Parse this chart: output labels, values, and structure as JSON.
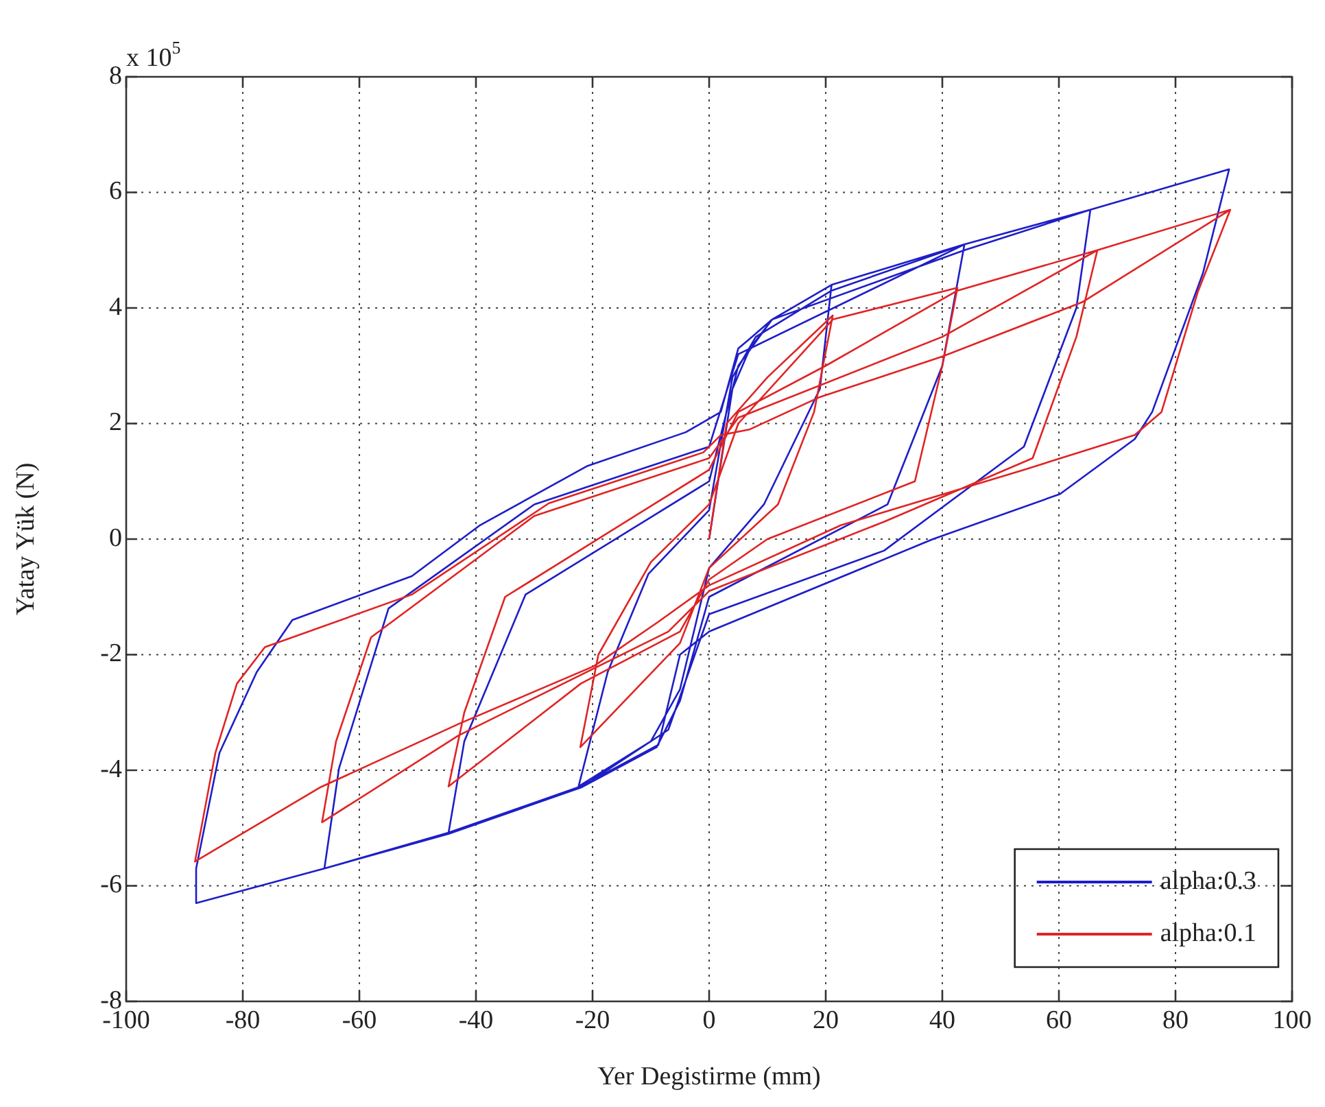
{
  "chart_data": {
    "type": "line",
    "xlabel": "Yer Degistirme (mm)",
    "ylabel": "Yatay Yük (N)",
    "annotations": [
      "x 10$^{5}$"
    ],
    "xlim": [
      -100,
      100
    ],
    "xticks": [
      -100,
      -80,
      -60,
      -40,
      -20,
      0,
      20,
      40,
      60,
      80,
      100
    ],
    "ylim": [
      -8,
      8
    ],
    "yticks": [
      -8,
      -6,
      -4,
      -2,
      0,
      2,
      4,
      6,
      8
    ],
    "grid": true,
    "legend": "bottom right",
    "line_style": "solid",
    "series": [
      {
        "name": "alpha:0.3",
        "color": "#1e1ec8",
        "x": [
          0,
          4,
          7,
          10.8,
          21,
          19,
          9.4,
          0,
          -5,
          -10,
          -22.4,
          -17.4,
          -10.4,
          0,
          4,
          8,
          21,
          43.8,
          40,
          30.6,
          0,
          -5,
          -9,
          -22,
          -44.7,
          -42,
          -31.5,
          0,
          5,
          10.8,
          43.8,
          65.4,
          63,
          54,
          30,
          0,
          -7,
          -22,
          -44.7,
          -66,
          -63.5,
          -55,
          -30,
          0,
          5,
          43.8,
          65.4,
          89.2,
          84.7,
          76,
          73,
          60.2,
          38.4,
          0,
          -5,
          -8.7,
          -22,
          -44.7,
          -66,
          -88,
          -88,
          -84,
          -77.6,
          -71.5,
          -51,
          -39.3,
          -21,
          -4,
          2,
          5,
          7,
          10.8,
          21,
          43.8,
          65.4,
          89.2
        ],
        "values": [
          0,
          2.6,
          3.3,
          3.8,
          4.4,
          2.6,
          0.6,
          -0.5,
          -2.6,
          -3.5,
          -4.28,
          -2.3,
          -0.6,
          0.5,
          2.8,
          3.5,
          4.3,
          5.1,
          3,
          0.6,
          -1,
          -2.8,
          -3.6,
          -4.3,
          -5.08,
          -3.5,
          -0.96,
          1,
          3,
          3.8,
          5,
          5.7,
          4,
          1.6,
          -0.2,
          -1.3,
          -3.3,
          -4.3,
          -5.1,
          -5.7,
          -3.97,
          -1.2,
          0.6,
          1.6,
          3.2,
          5.1,
          5.7,
          6.4,
          4.6,
          2.2,
          1.73,
          0.78,
          0,
          -1.6,
          -2,
          -3.56,
          -4.28,
          -5.08,
          -5.7,
          -6.3,
          -5.7,
          -3.7,
          -2.3,
          -1.4,
          -0.64,
          0.24,
          1.26,
          1.85,
          2.2,
          3.3,
          3.47,
          3.8,
          4.4,
          5.1,
          5.7,
          6.4
        ]
      },
      {
        "name": "alpha:0.1",
        "color": "#e02424",
        "x": [
          0,
          3,
          10,
          21.2,
          18,
          11.8,
          0,
          -5,
          -22.1,
          -19,
          -10,
          0,
          5,
          21.2,
          42.6,
          40,
          35.3,
          10,
          0,
          -5,
          -22,
          -44.7,
          -42,
          -35,
          0,
          5,
          20,
          42.6,
          66.6,
          63,
          55.5,
          30,
          0,
          -7,
          -43,
          -66.4,
          -64,
          -58,
          -30,
          0,
          5,
          40,
          66.6,
          89.4,
          83.8,
          77.6,
          73,
          54,
          22.6,
          0,
          -8.7,
          -19.8,
          -43,
          -66.8,
          -88.2,
          -84.7,
          -81,
          -76.2,
          -51,
          -27.5,
          -1,
          2,
          7,
          18.8,
          40,
          64,
          89.4
        ],
        "values": [
          0,
          2,
          2.8,
          3.87,
          2.2,
          0.6,
          -0.5,
          -1.8,
          -3.6,
          -2,
          -0.4,
          0.6,
          2,
          3.8,
          4.35,
          3,
          1,
          0,
          -0.7,
          -1.6,
          -2.5,
          -4.28,
          -3,
          -1,
          1.2,
          2.2,
          3,
          4.3,
          5,
          3.5,
          1.4,
          0.3,
          -0.9,
          -1.6,
          -3.4,
          -4.9,
          -3.5,
          -1.7,
          0.4,
          1.4,
          2.1,
          3.5,
          5,
          5.7,
          4.27,
          2.2,
          1.8,
          1.2,
          0.24,
          -0.8,
          -1.43,
          -2.2,
          -3.2,
          -4.3,
          -5.58,
          -3.7,
          -2.5,
          -1.87,
          -0.96,
          0.62,
          1.5,
          1.8,
          1.9,
          2.45,
          3.16,
          4.1,
          5.7
        ]
      }
    ]
  }
}
